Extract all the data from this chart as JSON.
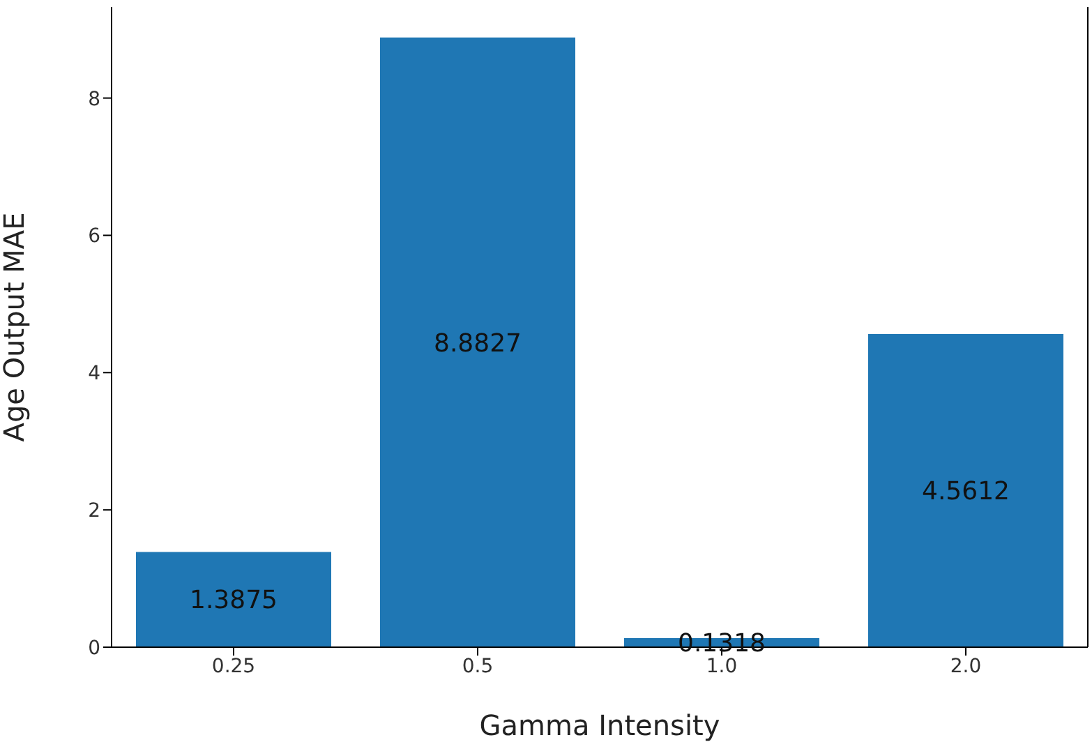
{
  "chart_data": {
    "type": "bar",
    "xlabel": "Gamma Intensity",
    "ylabel": "Age Output MAE",
    "categories": [
      "0.25",
      "0.5",
      "1.0",
      "2.0"
    ],
    "values": [
      1.3875,
      8.8827,
      0.1318,
      4.5612
    ],
    "color": "#1f77b4",
    "ylim": [
      0,
      9.327
    ],
    "yticks": [
      0,
      2,
      4,
      6,
      8
    ],
    "data_labels": true
  }
}
